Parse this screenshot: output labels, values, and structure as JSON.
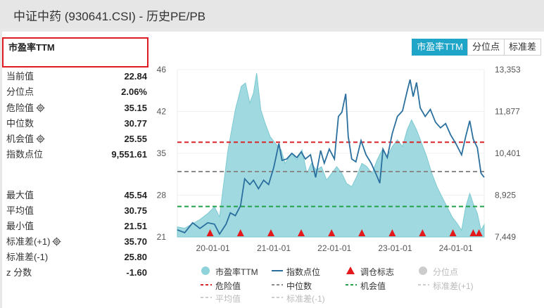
{
  "header": {
    "title": "中证中药 (930641.CSI) - 历史PE/PB"
  },
  "section": {
    "title": "市盈率TTM"
  },
  "tabs": [
    {
      "label": "市盈率TTM",
      "active": true
    },
    {
      "label": "分位点",
      "active": false
    },
    {
      "label": "标准差",
      "active": false
    }
  ],
  "stats": {
    "current": {
      "label": "当前值",
      "value": "22.84"
    },
    "percentile": {
      "label": "分位点",
      "value": "2.06%"
    },
    "danger": {
      "label": "危险值",
      "value": "35.15"
    },
    "median": {
      "label": "中位数",
      "value": "30.77"
    },
    "chance": {
      "label": "机会值",
      "value": "25.55"
    },
    "index": {
      "label": "指数点位",
      "value": "9,551.61"
    },
    "max": {
      "label": "最大值",
      "value": "45.54"
    },
    "mean": {
      "label": "平均值",
      "value": "30.75"
    },
    "min": {
      "label": "最小值",
      "value": "21.51"
    },
    "sd_plus": {
      "label": "标准差(+1)",
      "value": "35.70"
    },
    "sd_minus": {
      "label": "标准差(-1)",
      "value": "25.80"
    },
    "zscore": {
      "label": "z 分数",
      "value": "-1.60"
    }
  },
  "legend": {
    "pe": "市盈率TTM",
    "index": "指数点位",
    "rebalance": "调仓标志",
    "percentile": "分位点",
    "danger": "危险值",
    "median": "中位数",
    "chance": "机会值",
    "sd_plus": "标准差(+1)",
    "mean": "平均值",
    "sd_minus": "标准差(-1)"
  },
  "colors": {
    "accent": "#1fa5c7",
    "pe_fill": "#8fd3da",
    "index_line": "#2a6f9e",
    "danger": "#d9262b",
    "median": "#8a8a8a",
    "chance": "#25a04a",
    "marker": "#e3191c",
    "highlight": "#e11b22"
  },
  "chart_data": {
    "type": "area",
    "x_ticks": [
      "20-01-01",
      "21-01-01",
      "22-01-01",
      "23-01-01",
      "24-01-01"
    ],
    "y_left_ticks": [
      "46",
      "42",
      "35",
      "28",
      "21"
    ],
    "y_right_ticks": [
      "13,353",
      "11,877",
      "10,401",
      "8,925",
      "7,449"
    ],
    "y_left_range": [
      21,
      46
    ],
    "y_right_range": [
      7449,
      13353
    ],
    "x_range": [
      "2019-06-01",
      "2024-06-20"
    ],
    "reference_lines": {
      "danger": 35.15,
      "median": 30.77,
      "chance": 25.55
    },
    "pe_series": [
      [
        "2019-06-01",
        22.5
      ],
      [
        "2019-07-15",
        22.3
      ],
      [
        "2019-09-01",
        23.0
      ],
      [
        "2019-10-15",
        23.6
      ],
      [
        "2019-12-01",
        24.5
      ],
      [
        "2020-01-10",
        25.5
      ],
      [
        "2020-02-10",
        24.0
      ],
      [
        "2020-03-01",
        28.0
      ],
      [
        "2020-04-01",
        34.0
      ],
      [
        "2020-05-15",
        40.0
      ],
      [
        "2020-06-20",
        43.5
      ],
      [
        "2020-07-15",
        44.0
      ],
      [
        "2020-08-10",
        41.0
      ],
      [
        "2020-09-01",
        42.5
      ],
      [
        "2020-09-20",
        45.5
      ],
      [
        "2020-10-15",
        40.0
      ],
      [
        "2020-11-10",
        38.0
      ],
      [
        "2020-12-10",
        36.0
      ],
      [
        "2021-01-10",
        35.0
      ],
      [
        "2021-02-15",
        34.0
      ],
      [
        "2021-03-10",
        32.0
      ],
      [
        "2021-04-20",
        33.5
      ],
      [
        "2021-05-20",
        32.5
      ],
      [
        "2021-06-20",
        34.0
      ],
      [
        "2021-07-20",
        30.5
      ],
      [
        "2021-08-15",
        32.0
      ],
      [
        "2021-09-15",
        31.0
      ],
      [
        "2021-10-15",
        31.5
      ],
      [
        "2021-11-15",
        29.5
      ],
      [
        "2021-12-15",
        30.5
      ],
      [
        "2022-01-15",
        31.5
      ],
      [
        "2022-02-15",
        30.5
      ],
      [
        "2022-03-15",
        29.0
      ],
      [
        "2022-04-15",
        28.5
      ],
      [
        "2022-05-15",
        30.0
      ],
      [
        "2022-06-15",
        32.0
      ],
      [
        "2022-07-15",
        31.5
      ],
      [
        "2022-08-15",
        30.5
      ],
      [
        "2022-09-15",
        32.5
      ],
      [
        "2022-10-15",
        34.0
      ],
      [
        "2022-11-15",
        33.0
      ],
      [
        "2022-12-15",
        34.5
      ],
      [
        "2023-01-15",
        35.5
      ],
      [
        "2023-02-15",
        34.5
      ],
      [
        "2023-03-15",
        37.0
      ],
      [
        "2023-04-10",
        38.5
      ],
      [
        "2023-05-10",
        37.0
      ],
      [
        "2023-06-10",
        35.0
      ],
      [
        "2023-07-10",
        33.0
      ],
      [
        "2023-08-10",
        30.5
      ],
      [
        "2023-09-10",
        28.5
      ],
      [
        "2023-10-10",
        27.0
      ],
      [
        "2023-11-10",
        25.5
      ],
      [
        "2023-12-10",
        24.0
      ],
      [
        "2024-01-10",
        23.0
      ],
      [
        "2024-02-05",
        22.0
      ],
      [
        "2024-03-01",
        25.5
      ],
      [
        "2024-03-25",
        27.5
      ],
      [
        "2024-04-15",
        26.0
      ],
      [
        "2024-05-10",
        24.5
      ],
      [
        "2024-06-01",
        22.0
      ],
      [
        "2024-06-20",
        22.84
      ]
    ],
    "index_series": [
      [
        "2019-06-01",
        7700
      ],
      [
        "2019-07-15",
        7600
      ],
      [
        "2019-09-01",
        7950
      ],
      [
        "2019-10-15",
        7750
      ],
      [
        "2019-12-01",
        7950
      ],
      [
        "2020-01-10",
        7900
      ],
      [
        "2020-02-10",
        7550
      ],
      [
        "2020-03-20",
        7900
      ],
      [
        "2020-04-15",
        8300
      ],
      [
        "2020-05-15",
        8200
      ],
      [
        "2020-06-15",
        8550
      ],
      [
        "2020-07-10",
        9500
      ],
      [
        "2020-08-10",
        9300
      ],
      [
        "2020-09-01",
        9450
      ],
      [
        "2020-10-01",
        9150
      ],
      [
        "2020-11-01",
        9450
      ],
      [
        "2020-12-01",
        9300
      ],
      [
        "2021-01-01",
        9900
      ],
      [
        "2021-02-01",
        10750
      ],
      [
        "2021-02-20",
        10150
      ],
      [
        "2021-03-20",
        10200
      ],
      [
        "2021-04-20",
        10400
      ],
      [
        "2021-05-20",
        10250
      ],
      [
        "2021-06-15",
        10450
      ],
      [
        "2021-07-10",
        10200
      ],
      [
        "2021-08-10",
        10350
      ],
      [
        "2021-09-10",
        9550
      ],
      [
        "2021-10-10",
        10500
      ],
      [
        "2021-11-01",
        10050
      ],
      [
        "2021-12-01",
        10550
      ],
      [
        "2022-01-01",
        10200
      ],
      [
        "2022-01-25",
        11700
      ],
      [
        "2022-02-15",
        11850
      ],
      [
        "2022-03-10",
        12500
      ],
      [
        "2022-03-25",
        11000
      ],
      [
        "2022-04-15",
        10200
      ],
      [
        "2022-05-10",
        10100
      ],
      [
        "2022-06-10",
        10850
      ],
      [
        "2022-07-10",
        10350
      ],
      [
        "2022-08-10",
        10050
      ],
      [
        "2022-09-10",
        9650
      ],
      [
        "2022-10-01",
        9350
      ],
      [
        "2022-10-20",
        10550
      ],
      [
        "2022-11-15",
        10250
      ],
      [
        "2022-12-15",
        11100
      ],
      [
        "2023-01-15",
        11700
      ],
      [
        "2023-02-15",
        11900
      ],
      [
        "2023-03-15",
        12600
      ],
      [
        "2023-04-01",
        13000
      ],
      [
        "2023-04-20",
        12400
      ],
      [
        "2023-05-10",
        12900
      ],
      [
        "2023-06-01",
        12000
      ],
      [
        "2023-07-01",
        11700
      ],
      [
        "2023-08-01",
        11950
      ],
      [
        "2023-09-01",
        11500
      ],
      [
        "2023-10-01",
        11300
      ],
      [
        "2023-11-01",
        11450
      ],
      [
        "2023-12-01",
        11050
      ],
      [
        "2024-01-01",
        10750
      ],
      [
        "2024-02-05",
        10350
      ],
      [
        "2024-03-01",
        11000
      ],
      [
        "2024-03-25",
        11550
      ],
      [
        "2024-04-15",
        10900
      ],
      [
        "2024-05-10",
        10600
      ],
      [
        "2024-06-01",
        9700
      ],
      [
        "2024-06-20",
        9551.61
      ]
    ],
    "rebalance_markers": [
      "2019-12-15",
      "2020-06-15",
      "2020-12-15",
      "2021-06-15",
      "2021-12-15",
      "2022-06-15",
      "2022-12-15",
      "2023-06-15",
      "2023-12-15",
      "2024-04-15",
      "2024-05-20"
    ]
  }
}
